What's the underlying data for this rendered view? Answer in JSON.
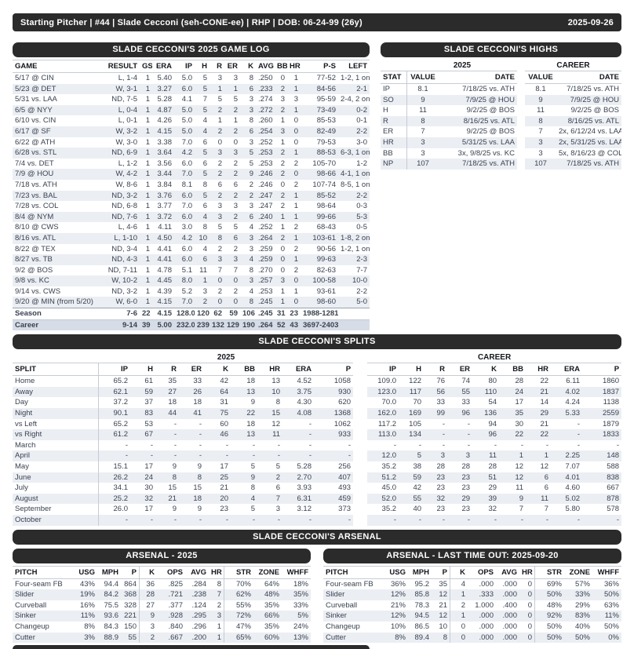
{
  "colors": {
    "header_bar": "#2b2b2b",
    "row_stripe": "#ebeef3",
    "career_row_bg": "#d7dde7",
    "table_text": "#3a4250"
  },
  "header": {
    "left": "Starting Pitcher  |  #44  |  Slade Cecconi (seh-CONE-ee)  |  RHP  |  DOB: 06-24-99 (26y)",
    "date": "2025-09-26"
  },
  "game_log": {
    "title": "SLADE CECCONI'S 2025 GAME LOG",
    "columns": [
      "GAME",
      "RESULT",
      "GS",
      "ERA",
      "IP",
      "H",
      "R",
      "ER",
      "K",
      "AVG",
      "BB",
      "HR",
      "P-S",
      "LEFT"
    ],
    "rows": [
      [
        "5/17 @ CIN",
        "L, 1-4",
        "1",
        "5.40",
        "5.0",
        "5",
        "3",
        "3",
        "8",
        ".250",
        "0",
        "1",
        "77-52",
        "1-2, 1 on"
      ],
      [
        "5/23 @ DET",
        "W, 3-1",
        "1",
        "3.27",
        "6.0",
        "5",
        "1",
        "1",
        "6",
        ".233",
        "2",
        "1",
        "84-56",
        "2-1"
      ],
      [
        "5/31 vs. LAA",
        "ND, 7-5",
        "1",
        "5.28",
        "4.1",
        "7",
        "5",
        "5",
        "3",
        ".274",
        "3",
        "3",
        "95-59",
        "2-4, 2 on"
      ],
      [
        "6/5 @ NYY",
        "L, 0-4",
        "1",
        "4.87",
        "5.0",
        "5",
        "2",
        "2",
        "3",
        ".272",
        "2",
        "1",
        "73-49",
        "0-2"
      ],
      [
        "6/10 vs. CIN",
        "L, 0-1",
        "1",
        "4.26",
        "5.0",
        "4",
        "1",
        "1",
        "8",
        ".260",
        "1",
        "0",
        "85-53",
        "0-1"
      ],
      [
        "6/17 @ SF",
        "W, 3-2",
        "1",
        "4.15",
        "5.0",
        "4",
        "2",
        "2",
        "6",
        ".254",
        "3",
        "0",
        "82-49",
        "2-2"
      ],
      [
        "6/22 @ ATH",
        "W, 3-0",
        "1",
        "3.38",
        "7.0",
        "6",
        "0",
        "0",
        "3",
        ".252",
        "1",
        "0",
        "79-53",
        "3-0"
      ],
      [
        "6/28 vs. STL",
        "ND, 6-9",
        "1",
        "3.64",
        "4.2",
        "5",
        "3",
        "3",
        "5",
        ".253",
        "2",
        "1",
        "88-53",
        "6-3, 1 on"
      ],
      [
        "7/4 vs. DET",
        "L, 1-2",
        "1",
        "3.56",
        "6.0",
        "6",
        "2",
        "2",
        "5",
        ".253",
        "2",
        "2",
        "105-70",
        "1-2"
      ],
      [
        "7/9 @ HOU",
        "W, 4-2",
        "1",
        "3.44",
        "7.0",
        "5",
        "2",
        "2",
        "9",
        ".246",
        "2",
        "0",
        "98-66",
        "4-1, 1 on"
      ],
      [
        "7/18 vs. ATH",
        "W, 8-6",
        "1",
        "3.84",
        "8.1",
        "8",
        "6",
        "6",
        "2",
        ".246",
        "0",
        "2",
        "107-74",
        "8-5, 1 on"
      ],
      [
        "7/23 vs. BAL",
        "ND, 3-2",
        "1",
        "3.76",
        "6.0",
        "5",
        "2",
        "2",
        "2",
        ".247",
        "2",
        "1",
        "85-52",
        "2-2"
      ],
      [
        "7/28 vs. COL",
        "ND, 6-8",
        "1",
        "3.77",
        "7.0",
        "6",
        "3",
        "3",
        "3",
        ".247",
        "2",
        "1",
        "98-64",
        "0-3"
      ],
      [
        "8/4 @ NYM",
        "ND, 7-6",
        "1",
        "3.72",
        "6.0",
        "4",
        "3",
        "2",
        "6",
        ".240",
        "1",
        "1",
        "99-66",
        "5-3"
      ],
      [
        "8/10 @ CWS",
        "L, 4-6",
        "1",
        "4.11",
        "3.0",
        "8",
        "5",
        "5",
        "4",
        ".252",
        "1",
        "2",
        "68-43",
        "0-5"
      ],
      [
        "8/16 vs. ATL",
        "L, 1-10",
        "1",
        "4.50",
        "4.2",
        "10",
        "8",
        "6",
        "3",
        ".264",
        "2",
        "1",
        "103-61",
        "1-8, 2 on"
      ],
      [
        "8/22 @ TEX",
        "ND, 3-4",
        "1",
        "4.41",
        "6.0",
        "4",
        "2",
        "2",
        "3",
        ".259",
        "0",
        "2",
        "90-56",
        "1-2, 1 on"
      ],
      [
        "8/27 vs. TB",
        "ND, 4-3",
        "1",
        "4.41",
        "6.0",
        "6",
        "3",
        "3",
        "4",
        ".259",
        "0",
        "1",
        "99-63",
        "2-3"
      ],
      [
        "9/2 @ BOS",
        "ND, 7-11",
        "1",
        "4.78",
        "5.1",
        "11",
        "7",
        "7",
        "8",
        ".270",
        "0",
        "2",
        "82-63",
        "7-7"
      ],
      [
        "9/8 vs. KC",
        "W, 10-2",
        "1",
        "4.45",
        "8.0",
        "1",
        "0",
        "0",
        "3",
        ".257",
        "3",
        "0",
        "100-58",
        "10-0"
      ],
      [
        "9/14 vs. CWS",
        "ND, 3-2",
        "1",
        "4.39",
        "5.2",
        "3",
        "2",
        "2",
        "4",
        ".253",
        "1",
        "1",
        "93-61",
        "2-2"
      ],
      [
        "9/20 @ MIN (from 5/20)",
        "W, 6-0",
        "1",
        "4.15",
        "7.0",
        "2",
        "0",
        "0",
        "8",
        ".245",
        "1",
        "0",
        "98-60",
        "5-0"
      ]
    ],
    "totals": [
      [
        "Season",
        "7-6",
        "22",
        "4.15",
        "128.0",
        "120",
        "62",
        "59",
        "106",
        ".245",
        "31",
        "23",
        "1988-1281",
        ""
      ],
      [
        "Career",
        "9-14",
        "39",
        "5.00",
        "232.0",
        "239",
        "132",
        "129",
        "190",
        ".264",
        "52",
        "43",
        "3697-2403",
        ""
      ]
    ]
  },
  "highs": {
    "title": "SLADE CECCONI'S HIGHS",
    "group_2025": "2025",
    "group_career": "CAREER",
    "columns": [
      "STAT",
      "VALUE",
      "DATE",
      "VALUE",
      "DATE"
    ],
    "rows": [
      [
        "IP",
        "8.1",
        "7/18/25 vs. ATH",
        "8.1",
        "7/18/25 vs. ATH"
      ],
      [
        "SO",
        "9",
        "7/9/25 @ HOU",
        "9",
        "7/9/25 @ HOU"
      ],
      [
        "H",
        "11",
        "9/2/25 @ BOS",
        "11",
        "9/2/25 @ BOS"
      ],
      [
        "R",
        "8",
        "8/16/25 vs. ATL",
        "8",
        "8/16/25 vs. ATL"
      ],
      [
        "ER",
        "7",
        "9/2/25 @ BOS",
        "7",
        "2x, 6/12/24 vs. LAA"
      ],
      [
        "HR",
        "3",
        "5/31/25 vs. LAA",
        "3",
        "2x, 5/31/25 vs. LAA"
      ],
      [
        "BB",
        "3",
        "3x, 9/8/25 vs. KC",
        "3",
        "5x, 8/16/23 @ COL"
      ],
      [
        "NP",
        "107",
        "7/18/25 vs. ATH",
        "107",
        "7/18/25 vs. ATH"
      ]
    ]
  },
  "splits": {
    "title": "SLADE CECCONI'S SPLITS",
    "group_2025": "2025",
    "group_career": "CAREER",
    "columns": [
      "SPLIT",
      "IP",
      "H",
      "R",
      "ER",
      "K",
      "BB",
      "HR",
      "ERA",
      "P",
      "IP",
      "H",
      "R",
      "ER",
      "K",
      "BB",
      "HR",
      "ERA",
      "P"
    ],
    "rows": [
      [
        "Home",
        "65.2",
        "61",
        "35",
        "33",
        "42",
        "18",
        "13",
        "4.52",
        "1058",
        "109.0",
        "122",
        "76",
        "74",
        "80",
        "28",
        "22",
        "6.11",
        "1860"
      ],
      [
        "Away",
        "62.1",
        "59",
        "27",
        "26",
        "64",
        "13",
        "10",
        "3.75",
        "930",
        "123.0",
        "117",
        "56",
        "55",
        "110",
        "24",
        "21",
        "4.02",
        "1837"
      ],
      [
        "Day",
        "37.2",
        "37",
        "18",
        "18",
        "31",
        "9",
        "8",
        "4.30",
        "620",
        "70.0",
        "70",
        "33",
        "33",
        "54",
        "17",
        "14",
        "4.24",
        "1138"
      ],
      [
        "Night",
        "90.1",
        "83",
        "44",
        "41",
        "75",
        "22",
        "15",
        "4.08",
        "1368",
        "162.0",
        "169",
        "99",
        "96",
        "136",
        "35",
        "29",
        "5.33",
        "2559"
      ],
      [
        "vs Left",
        "65.2",
        "53",
        "-",
        "-",
        "60",
        "18",
        "12",
        "-",
        "1062",
        "117.2",
        "105",
        "-",
        "-",
        "94",
        "30",
        "21",
        "-",
        "1879"
      ],
      [
        "vs Right",
        "61.2",
        "67",
        "-",
        "-",
        "46",
        "13",
        "11",
        "-",
        "933",
        "113.0",
        "134",
        "-",
        "-",
        "96",
        "22",
        "22",
        "-",
        "1833"
      ],
      [
        "March",
        "-",
        "-",
        "-",
        "-",
        "-",
        "-",
        "-",
        "-",
        "-",
        "-",
        "-",
        "-",
        "-",
        "-",
        "-",
        "-",
        "-",
        "-"
      ],
      [
        "April",
        "-",
        "-",
        "-",
        "-",
        "-",
        "-",
        "-",
        "-",
        "-",
        "12.0",
        "5",
        "3",
        "3",
        "11",
        "1",
        "1",
        "2.25",
        "148"
      ],
      [
        "May",
        "15.1",
        "17",
        "9",
        "9",
        "17",
        "5",
        "5",
        "5.28",
        "256",
        "35.2",
        "38",
        "28",
        "28",
        "28",
        "12",
        "12",
        "7.07",
        "588"
      ],
      [
        "June",
        "26.2",
        "24",
        "8",
        "8",
        "25",
        "9",
        "2",
        "2.70",
        "407",
        "51.2",
        "59",
        "23",
        "23",
        "51",
        "12",
        "6",
        "4.01",
        "838"
      ],
      [
        "July",
        "34.1",
        "30",
        "15",
        "15",
        "21",
        "8",
        "6",
        "3.93",
        "493",
        "45.0",
        "42",
        "23",
        "23",
        "29",
        "11",
        "6",
        "4.60",
        "667"
      ],
      [
        "August",
        "25.2",
        "32",
        "21",
        "18",
        "20",
        "4",
        "7",
        "6.31",
        "459",
        "52.0",
        "55",
        "32",
        "29",
        "39",
        "9",
        "11",
        "5.02",
        "878"
      ],
      [
        "September",
        "26.0",
        "17",
        "9",
        "9",
        "23",
        "5",
        "3",
        "3.12",
        "373",
        "35.2",
        "40",
        "23",
        "23",
        "32",
        "7",
        "7",
        "5.80",
        "578"
      ],
      [
        "October",
        "-",
        "-",
        "-",
        "-",
        "-",
        "-",
        "-",
        "-",
        "-",
        "-",
        "-",
        "-",
        "-",
        "-",
        "-",
        "-",
        "-",
        "-"
      ]
    ]
  },
  "arsenal": {
    "title": "SLADE CECCONI'S ARSENAL",
    "columns": [
      "PITCH",
      "USG",
      "MPH",
      "P",
      "K",
      "OPS",
      "AVG",
      "HR",
      "STR",
      "ZONE",
      "WHFF"
    ],
    "season": {
      "title": "ARSENAL - 2025",
      "rows": [
        [
          "Four-seam FB",
          "43%",
          "94.4",
          "864",
          "36",
          ".825",
          ".284",
          "8",
          "70%",
          "64%",
          "18%"
        ],
        [
          "Slider",
          "19%",
          "84.2",
          "368",
          "28",
          ".721",
          ".238",
          "7",
          "62%",
          "48%",
          "35%"
        ],
        [
          "Curveball",
          "16%",
          "75.5",
          "328",
          "27",
          ".377",
          ".124",
          "2",
          "55%",
          "35%",
          "33%"
        ],
        [
          "Sinker",
          "11%",
          "93.6",
          "221",
          "9",
          ".928",
          ".295",
          "3",
          "72%",
          "66%",
          "5%"
        ],
        [
          "Changeup",
          "8%",
          "84.3",
          "150",
          "3",
          ".840",
          ".296",
          "1",
          "47%",
          "35%",
          "24%"
        ],
        [
          "Cutter",
          "3%",
          "88.9",
          "55",
          "2",
          ".667",
          ".200",
          "1",
          "65%",
          "60%",
          "13%"
        ]
      ]
    },
    "last_time_out": {
      "title": "ARSENAL - LAST TIME OUT: 2025-09-20",
      "rows": [
        [
          "Four-seam FB",
          "36%",
          "95.2",
          "35",
          "4",
          ".000",
          ".000",
          "0",
          "69%",
          "57%",
          "36%"
        ],
        [
          "Slider",
          "12%",
          "85.8",
          "12",
          "1",
          ".333",
          ".000",
          "0",
          "50%",
          "33%",
          "50%"
        ],
        [
          "Curveball",
          "21%",
          "78.3",
          "21",
          "2",
          "1.000",
          ".400",
          "0",
          "48%",
          "29%",
          "63%"
        ],
        [
          "Sinker",
          "12%",
          "94.5",
          "12",
          "1",
          ".000",
          ".000",
          "0",
          "92%",
          "83%",
          "11%"
        ],
        [
          "Changeup",
          "10%",
          "86.5",
          "10",
          "0",
          ".000",
          ".000",
          "0",
          "50%",
          "40%",
          "50%"
        ],
        [
          "Cutter",
          "8%",
          "89.4",
          "8",
          "0",
          ".000",
          ".000",
          "0",
          "50%",
          "50%",
          "0%"
        ]
      ]
    }
  }
}
